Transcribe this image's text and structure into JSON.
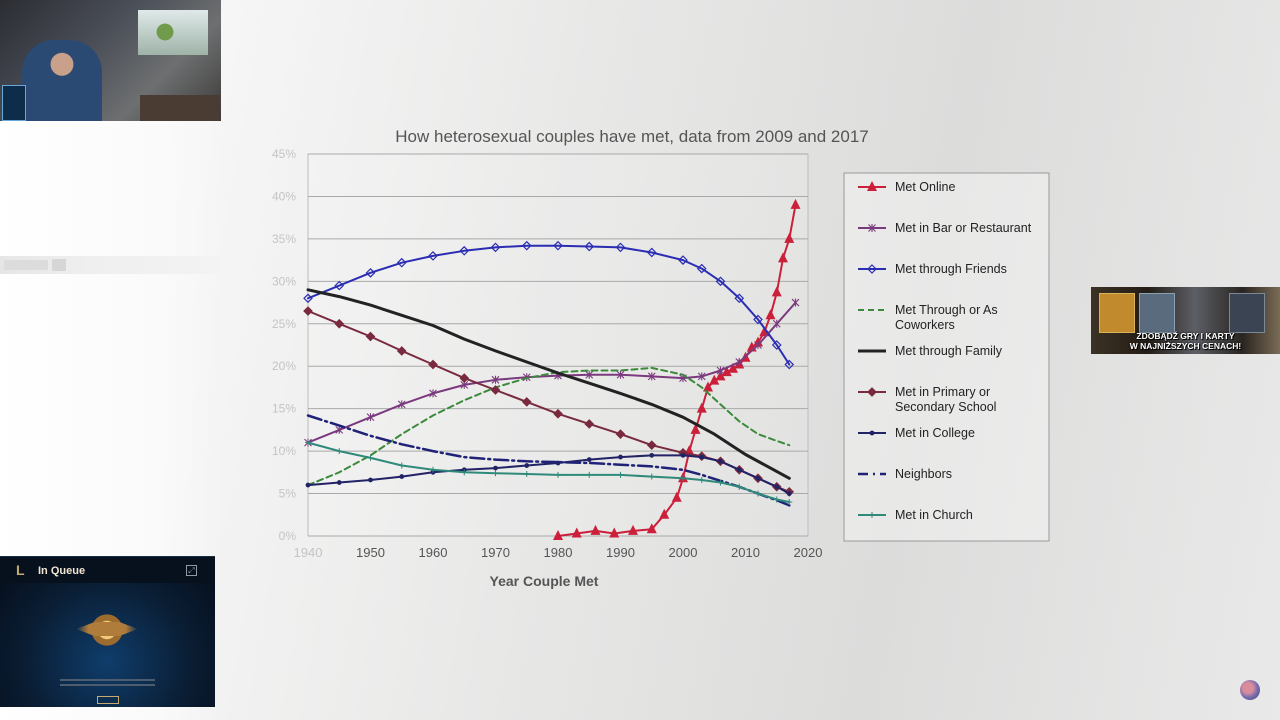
{
  "stream_overlay": {
    "queue_widget": {
      "title": "In Queue",
      "logo": "L"
    },
    "ad_banner": {
      "line1": "ZDOBĄDŹ GRY I KARTY",
      "line2": "W NAJNIŻSZYCH CENACH!"
    }
  },
  "chart_data": {
    "type": "line",
    "title": "How heterosexual couples have met, data from 2009 and 2017",
    "xlabel": "Year Couple Met",
    "ylabel": "",
    "xlim": [
      1940,
      2020
    ],
    "ylim": [
      0,
      45
    ],
    "x_ticks": [
      "1940",
      "1950",
      "1960",
      "1970",
      "1980",
      "1990",
      "2000",
      "2010",
      "2020"
    ],
    "y_ticks": [
      "0%",
      "5%",
      "10%",
      "15%",
      "20%",
      "25%",
      "30%",
      "35%",
      "40%",
      "45%"
    ],
    "grid": true,
    "legend_position": "right",
    "series": [
      {
        "name": "Met Online",
        "color": "#cc1f3a",
        "marker": "triangle",
        "points": [
          [
            1980,
            0
          ],
          [
            1983,
            0.3
          ],
          [
            1986,
            0.6
          ],
          [
            1989,
            0.3
          ],
          [
            1992,
            0.6
          ],
          [
            1995,
            0.8
          ],
          [
            1997,
            2.5
          ],
          [
            1999,
            4.5
          ],
          [
            2000,
            6.8
          ],
          [
            2001,
            10
          ],
          [
            2002,
            12.5
          ],
          [
            2003,
            15
          ],
          [
            2004,
            17.5
          ],
          [
            2005,
            18.3
          ],
          [
            2006,
            18.8
          ],
          [
            2007,
            19.3
          ],
          [
            2008,
            19.7
          ],
          [
            2009,
            20.2
          ],
          [
            2010,
            21
          ],
          [
            2011,
            22.2
          ],
          [
            2012,
            22.8
          ],
          [
            2013,
            24
          ],
          [
            2014,
            26
          ],
          [
            2015,
            28.7
          ],
          [
            2016,
            32.7
          ],
          [
            2017,
            35
          ],
          [
            2018,
            39
          ]
        ]
      },
      {
        "name": "Met in Bar or Restaurant",
        "color": "#7b3a7e",
        "marker": "star",
        "points": [
          [
            1940,
            11
          ],
          [
            1945,
            12.5
          ],
          [
            1950,
            14
          ],
          [
            1955,
            15.5
          ],
          [
            1960,
            16.8
          ],
          [
            1965,
            17.8
          ],
          [
            1970,
            18.4
          ],
          [
            1975,
            18.7
          ],
          [
            1980,
            18.9
          ],
          [
            1985,
            19
          ],
          [
            1990,
            19
          ],
          [
            1995,
            18.8
          ],
          [
            2000,
            18.6
          ],
          [
            2003,
            18.8
          ],
          [
            2006,
            19.5
          ],
          [
            2009,
            20.5
          ],
          [
            2012,
            22.5
          ],
          [
            2015,
            25
          ],
          [
            2018,
            27.5
          ]
        ]
      },
      {
        "name": "Met through Friends",
        "color": "#2b2db3",
        "marker": "diamond-open",
        "points": [
          [
            1940,
            28
          ],
          [
            1945,
            29.5
          ],
          [
            1950,
            31
          ],
          [
            1955,
            32.2
          ],
          [
            1960,
            33
          ],
          [
            1965,
            33.6
          ],
          [
            1970,
            34
          ],
          [
            1975,
            34.2
          ],
          [
            1980,
            34.2
          ],
          [
            1985,
            34.1
          ],
          [
            1990,
            34
          ],
          [
            1995,
            33.4
          ],
          [
            2000,
            32.5
          ],
          [
            2003,
            31.5
          ],
          [
            2006,
            30
          ],
          [
            2009,
            28
          ],
          [
            2012,
            25.5
          ],
          [
            2015,
            22.5
          ],
          [
            2017,
            20.2
          ]
        ]
      },
      {
        "name": "Met Through or As Coworkers",
        "color": "#3b8a3b",
        "dash": "6,4",
        "points": [
          [
            1940,
            6
          ],
          [
            1945,
            7.5
          ],
          [
            1950,
            9.5
          ],
          [
            1955,
            12
          ],
          [
            1960,
            14.2
          ],
          [
            1965,
            16
          ],
          [
            1970,
            17.5
          ],
          [
            1975,
            18.6
          ],
          [
            1980,
            19.3
          ],
          [
            1985,
            19.5
          ],
          [
            1990,
            19.5
          ],
          [
            1995,
            19.8
          ],
          [
            2000,
            19
          ],
          [
            2003,
            17.5
          ],
          [
            2006,
            15.5
          ],
          [
            2009,
            13.5
          ],
          [
            2012,
            12
          ],
          [
            2015,
            11.2
          ],
          [
            2017,
            10.7
          ]
        ]
      },
      {
        "name": "Met through Family",
        "color": "#222222",
        "width": 3,
        "points": [
          [
            1940,
            29
          ],
          [
            1945,
            28.2
          ],
          [
            1950,
            27.2
          ],
          [
            1955,
            26
          ],
          [
            1960,
            24.8
          ],
          [
            1965,
            23.2
          ],
          [
            1970,
            21.8
          ],
          [
            1975,
            20.5
          ],
          [
            1980,
            19.2
          ],
          [
            1985,
            18
          ],
          [
            1990,
            16.8
          ],
          [
            1995,
            15.5
          ],
          [
            2000,
            14
          ],
          [
            2005,
            12
          ],
          [
            2010,
            9.6
          ],
          [
            2014,
            8
          ],
          [
            2017,
            6.8
          ]
        ]
      },
      {
        "name": "Met in Primary or Secondary School",
        "color": "#7a2a3e",
        "marker": "diamond",
        "points": [
          [
            1940,
            26.5
          ],
          [
            1945,
            25
          ],
          [
            1950,
            23.5
          ],
          [
            1955,
            21.8
          ],
          [
            1960,
            20.2
          ],
          [
            1965,
            18.6
          ],
          [
            1970,
            17.2
          ],
          [
            1975,
            15.8
          ],
          [
            1980,
            14.4
          ],
          [
            1985,
            13.2
          ],
          [
            1990,
            12
          ],
          [
            1995,
            10.7
          ],
          [
            2000,
            9.8
          ],
          [
            2003,
            9.4
          ],
          [
            2006,
            8.8
          ],
          [
            2009,
            7.8
          ],
          [
            2012,
            6.8
          ],
          [
            2015,
            5.8
          ],
          [
            2017,
            5.2
          ]
        ]
      },
      {
        "name": "Met in College",
        "color": "#222266",
        "marker": "dot",
        "points": [
          [
            1940,
            6
          ],
          [
            1945,
            6.3
          ],
          [
            1950,
            6.6
          ],
          [
            1955,
            7
          ],
          [
            1960,
            7.5
          ],
          [
            1965,
            7.8
          ],
          [
            1970,
            8
          ],
          [
            1975,
            8.3
          ],
          [
            1980,
            8.6
          ],
          [
            1985,
            9
          ],
          [
            1990,
            9.3
          ],
          [
            1995,
            9.5
          ],
          [
            2000,
            9.5
          ],
          [
            2003,
            9.3
          ],
          [
            2006,
            8.8
          ],
          [
            2009,
            7.8
          ],
          [
            2012,
            6.8
          ],
          [
            2015,
            5.8
          ],
          [
            2017,
            5
          ]
        ]
      },
      {
        "name": "Neighbors",
        "color": "#1f2277",
        "dash": "14,4,2,4",
        "width": 2.5,
        "points": [
          [
            1940,
            14.2
          ],
          [
            1945,
            13
          ],
          [
            1950,
            11.8
          ],
          [
            1955,
            10.8
          ],
          [
            1960,
            10
          ],
          [
            1965,
            9.3
          ],
          [
            1970,
            9
          ],
          [
            1975,
            8.8
          ],
          [
            1980,
            8.7
          ],
          [
            1985,
            8.6
          ],
          [
            1990,
            8.4
          ],
          [
            1995,
            8.2
          ],
          [
            2000,
            7.8
          ],
          [
            2003,
            7.2
          ],
          [
            2006,
            6.5
          ],
          [
            2009,
            5.8
          ],
          [
            2012,
            5
          ],
          [
            2015,
            4.2
          ],
          [
            2017,
            3.6
          ]
        ]
      },
      {
        "name": "Met in Church",
        "color": "#2f8a7a",
        "marker": "plus",
        "points": [
          [
            1940,
            11
          ],
          [
            1945,
            10
          ],
          [
            1950,
            9.2
          ],
          [
            1955,
            8.3
          ],
          [
            1960,
            7.8
          ],
          [
            1965,
            7.5
          ],
          [
            1970,
            7.4
          ],
          [
            1975,
            7.3
          ],
          [
            1980,
            7.2
          ],
          [
            1985,
            7.2
          ],
          [
            1990,
            7.2
          ],
          [
            1995,
            7
          ],
          [
            2000,
            6.8
          ],
          [
            2003,
            6.6
          ],
          [
            2006,
            6.3
          ],
          [
            2009,
            5.8
          ],
          [
            2012,
            5
          ],
          [
            2015,
            4.3
          ],
          [
            2017,
            4
          ]
        ]
      }
    ]
  }
}
